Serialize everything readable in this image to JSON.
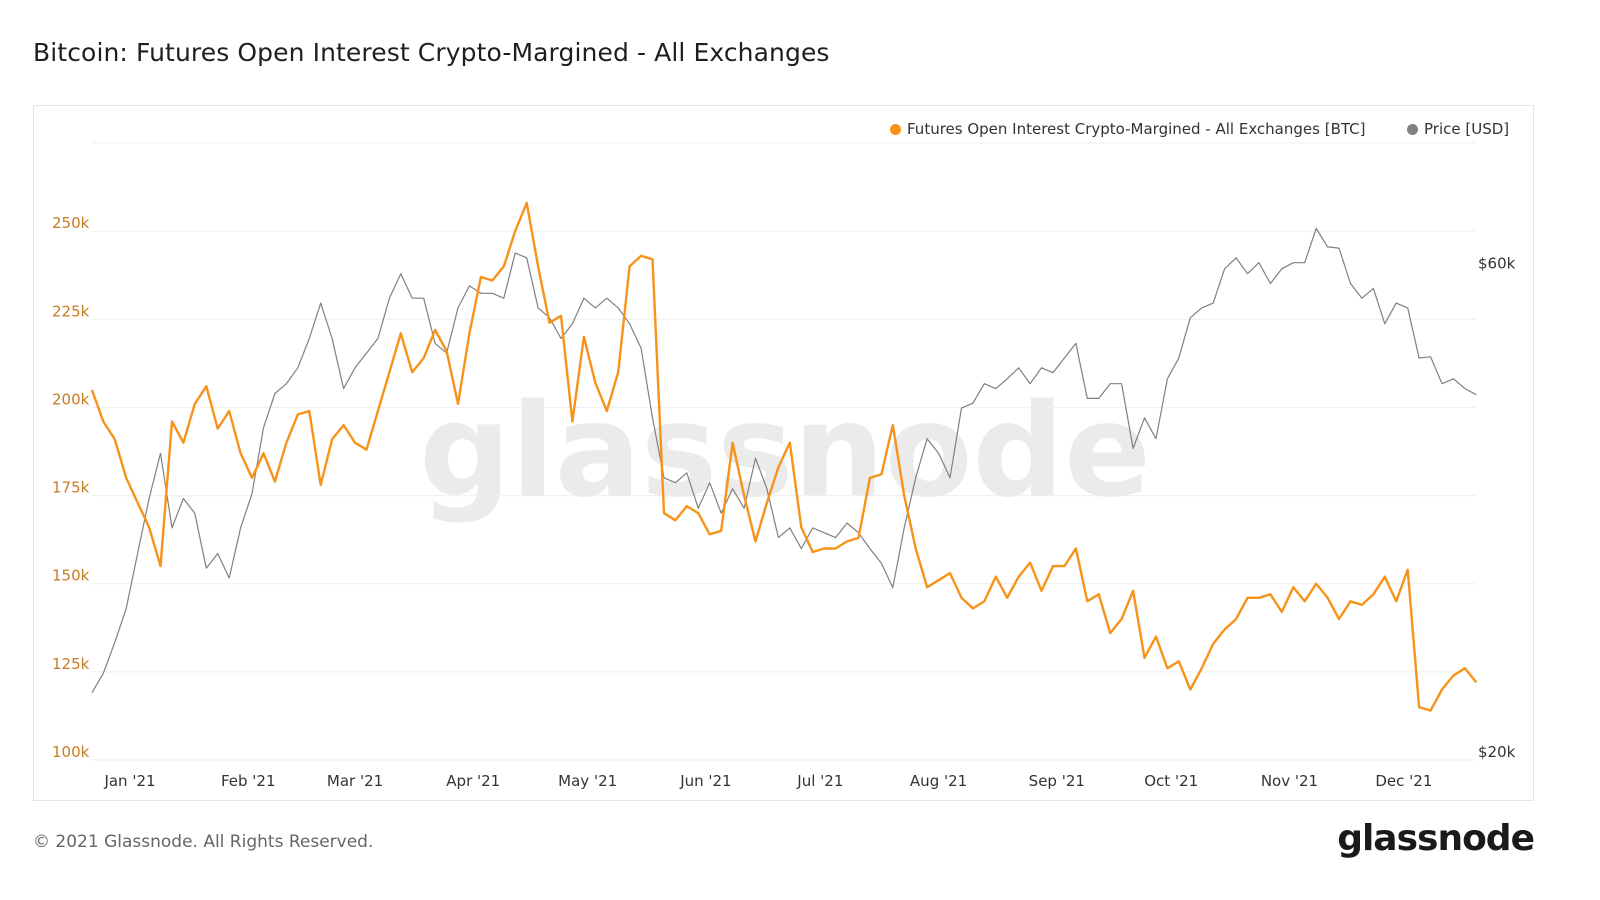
{
  "title": "Bitcoin: Futures Open Interest Crypto-Margined - All Exchanges",
  "footer": {
    "copyright": "© 2021 Glassnode. All Rights Reserved.",
    "logo": "glassnode"
  },
  "watermark": "glassnode",
  "chart_data": {
    "type": "line",
    "title": "Bitcoin: Futures Open Interest Crypto-Margined - All Exchanges",
    "legend_position": "top-right",
    "grid": true,
    "x_ticks": [
      {
        "date": "2021-01-01",
        "label": "Jan '21"
      },
      {
        "date": "2021-02-01",
        "label": "Feb '21"
      },
      {
        "date": "2021-03-01",
        "label": "Mar '21"
      },
      {
        "date": "2021-04-01",
        "label": "Apr '21"
      },
      {
        "date": "2021-05-01",
        "label": "May '21"
      },
      {
        "date": "2021-06-01",
        "label": "Jun '21"
      },
      {
        "date": "2021-07-01",
        "label": "Jul '21"
      },
      {
        "date": "2021-08-01",
        "label": "Aug '21"
      },
      {
        "date": "2021-09-01",
        "label": "Sep '21"
      },
      {
        "date": "2021-10-01",
        "label": "Oct '21"
      },
      {
        "date": "2021-11-01",
        "label": "Nov '21"
      },
      {
        "date": "2021-12-01",
        "label": "Dec '21"
      }
    ],
    "y_left": {
      "range": [
        100000,
        275000
      ],
      "ticks": [
        {
          "v": 100000,
          "label": "100k"
        },
        {
          "v": 125000,
          "label": "125k"
        },
        {
          "v": 150000,
          "label": "150k"
        },
        {
          "v": 175000,
          "label": "175k"
        },
        {
          "v": 200000,
          "label": "200k"
        },
        {
          "v": 225000,
          "label": "225k"
        },
        {
          "v": 250000,
          "label": "250k"
        }
      ],
      "color": "#c77c24"
    },
    "y_right": {
      "range": [
        20000,
        70500
      ],
      "scale": "log-like",
      "ticks": [
        {
          "v": 20000,
          "label": "$20k"
        },
        {
          "v": 60000,
          "label": "$60k"
        }
      ],
      "color": "#333333"
    },
    "x": [
      "2020-12-22",
      "2020-12-25",
      "2020-12-28",
      "2020-12-31",
      "2021-01-03",
      "2021-01-06",
      "2021-01-09",
      "2021-01-12",
      "2021-01-15",
      "2021-01-18",
      "2021-01-21",
      "2021-01-24",
      "2021-01-27",
      "2021-01-30",
      "2021-02-02",
      "2021-02-05",
      "2021-02-08",
      "2021-02-11",
      "2021-02-14",
      "2021-02-17",
      "2021-02-20",
      "2021-02-23",
      "2021-02-26",
      "2021-03-01",
      "2021-03-04",
      "2021-03-07",
      "2021-03-10",
      "2021-03-13",
      "2021-03-16",
      "2021-03-19",
      "2021-03-22",
      "2021-03-25",
      "2021-03-28",
      "2021-03-31",
      "2021-04-03",
      "2021-04-06",
      "2021-04-09",
      "2021-04-12",
      "2021-04-15",
      "2021-04-18",
      "2021-04-21",
      "2021-04-24",
      "2021-04-27",
      "2021-04-30",
      "2021-05-03",
      "2021-05-06",
      "2021-05-09",
      "2021-05-12",
      "2021-05-15",
      "2021-05-18",
      "2021-05-21",
      "2021-05-24",
      "2021-05-27",
      "2021-05-30",
      "2021-06-02",
      "2021-06-05",
      "2021-06-08",
      "2021-06-11",
      "2021-06-14",
      "2021-06-17",
      "2021-06-20",
      "2021-06-23",
      "2021-06-26",
      "2021-06-29",
      "2021-07-02",
      "2021-07-05",
      "2021-07-08",
      "2021-07-11",
      "2021-07-14",
      "2021-07-17",
      "2021-07-20",
      "2021-07-23",
      "2021-07-26",
      "2021-07-29",
      "2021-08-01",
      "2021-08-04",
      "2021-08-07",
      "2021-08-10",
      "2021-08-13",
      "2021-08-16",
      "2021-08-19",
      "2021-08-22",
      "2021-08-25",
      "2021-08-28",
      "2021-08-31",
      "2021-09-03",
      "2021-09-06",
      "2021-09-09",
      "2021-09-12",
      "2021-09-15",
      "2021-09-18",
      "2021-09-21",
      "2021-09-24",
      "2021-09-27",
      "2021-09-30",
      "2021-10-03",
      "2021-10-06",
      "2021-10-09",
      "2021-10-12",
      "2021-10-15",
      "2021-10-18",
      "2021-10-21",
      "2021-10-24",
      "2021-10-27",
      "2021-10-30",
      "2021-11-02",
      "2021-11-05",
      "2021-11-08",
      "2021-11-11",
      "2021-11-14",
      "2021-11-17",
      "2021-11-20",
      "2021-11-23",
      "2021-11-26",
      "2021-11-29",
      "2021-12-02",
      "2021-12-05",
      "2021-12-08",
      "2021-12-11",
      "2021-12-14",
      "2021-12-17",
      "2021-12-20"
    ],
    "series": [
      {
        "name": "Futures Open Interest Crypto-Margined - All Exchanges [BTC]",
        "axis": "left",
        "color": "#f7931a",
        "values": [
          205000,
          196000,
          191000,
          180000,
          173000,
          166000,
          155000,
          196000,
          190000,
          201000,
          206000,
          194000,
          199000,
          187000,
          180000,
          187000,
          179000,
          190000,
          198000,
          199000,
          178000,
          191000,
          195000,
          190000,
          188000,
          199000,
          210000,
          221000,
          210000,
          214000,
          222000,
          216000,
          201000,
          221000,
          237000,
          236000,
          240000,
          250000,
          258000,
          240000,
          224000,
          226000,
          196000,
          220000,
          207000,
          199000,
          210000,
          240000,
          243000,
          242000,
          170000,
          168000,
          172000,
          170000,
          164000,
          165000,
          190000,
          175000,
          162000,
          173000,
          183000,
          190000,
          166000,
          159000,
          160000,
          160000,
          162000,
          163000,
          180000,
          181000,
          195000,
          175000,
          160000,
          149000,
          151000,
          153000,
          146000,
          143000,
          145000,
          152000,
          146000,
          152000,
          156000,
          148000,
          155000,
          155000,
          160000,
          145000,
          147000,
          136000,
          140000,
          148000,
          129000,
          135000,
          126000,
          128000,
          120000,
          126000,
          133000,
          137000,
          140000,
          146000,
          146000,
          147000,
          142000,
          149000,
          145000,
          150000,
          146000,
          140000,
          145000,
          144000,
          147000,
          152000,
          145000,
          154000,
          115000,
          114000,
          120000,
          124000,
          126000,
          122000
        ]
      },
      {
        "name": "Price [USD]",
        "axis": "right",
        "color": "#808080",
        "values": [
          25500,
          27100,
          29600,
          32400,
          36900,
          41400,
          45100,
          39000,
          41400,
          40200,
          35700,
          36900,
          34900,
          39000,
          41800,
          47200,
          50000,
          50800,
          52100,
          54500,
          57400,
          54500,
          50400,
          52100,
          53300,
          54500,
          57800,
          59800,
          57800,
          57800,
          54100,
          53300,
          57000,
          58800,
          58200,
          58200,
          57800,
          61500,
          61100,
          57000,
          56200,
          54500,
          55700,
          57800,
          57000,
          57800,
          57000,
          55700,
          53700,
          48000,
          43100,
          42700,
          43500,
          40600,
          42700,
          40200,
          42200,
          40600,
          44700,
          42200,
          38200,
          39000,
          37300,
          39000,
          38600,
          38200,
          39400,
          38600,
          37300,
          36100,
          34100,
          39000,
          43100,
          46300,
          45100,
          43100,
          48800,
          49200,
          50800,
          50400,
          51200,
          52100,
          50800,
          52100,
          51700,
          52900,
          54100,
          49600,
          49600,
          50800,
          50800,
          45500,
          48000,
          46300,
          51200,
          52900,
          56200,
          57000,
          57400,
          60200,
          61100,
          59800,
          60700,
          59000,
          60200,
          60700,
          60700,
          63500,
          62000,
          61900,
          59000,
          57800,
          58600,
          55700,
          57400,
          57000,
          52900,
          53000,
          50800,
          51200,
          50400,
          49900
        ]
      }
    ]
  }
}
